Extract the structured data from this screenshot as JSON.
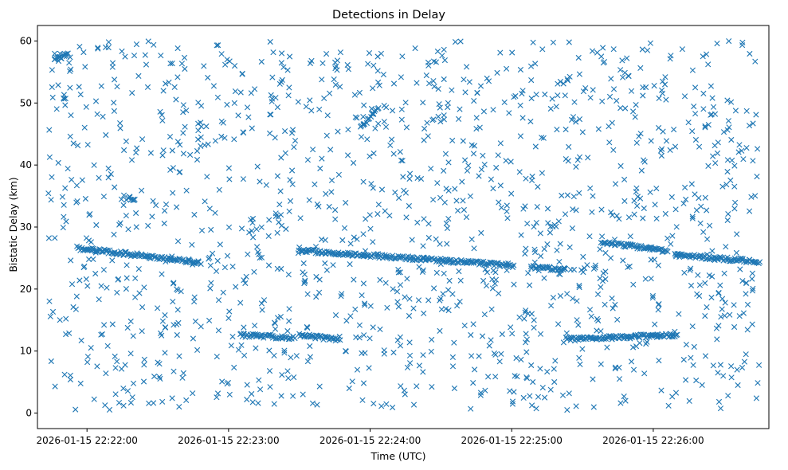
{
  "chart_data": {
    "type": "scatter",
    "title": "Detections in Delay",
    "xlabel": "Time (UTC)",
    "ylabel": "Bistatic Delay (km)",
    "x_axis": "datetime",
    "xlim": [
      "2026-01-15 22:21:39",
      "2026-01-15 22:26:49"
    ],
    "ylim": [
      -2.5,
      62.5
    ],
    "x_ticks": [
      "2026-01-15 22:22:00",
      "2026-01-15 22:23:00",
      "2026-01-15 22:24:00",
      "2026-01-15 22:25:00",
      "2026-01-15 22:26:00"
    ],
    "y_ticks": [
      0,
      10,
      20,
      30,
      40,
      50,
      60
    ],
    "grid": false,
    "legend": "none",
    "marker": "x",
    "marker_color": "#1f77b4",
    "series": [
      {
        "tracks": [
          {
            "start": [
              "2026-01-15 22:21:56",
              26.6
            ],
            "end": [
              "2026-01-15 22:22:48",
              24.3
            ]
          },
          {
            "start": [
              "2026-01-15 22:23:30",
              26.2
            ],
            "end": [
              "2026-01-15 22:25:01",
              23.8
            ]
          },
          {
            "start": [
              "2026-01-15 22:25:08",
              23.6
            ],
            "end": [
              "2026-01-15 22:25:23",
              23.1
            ]
          },
          {
            "start": [
              "2026-01-15 22:25:38",
              27.6
            ],
            "end": [
              "2026-01-15 22:26:06",
              26.1
            ]
          },
          {
            "start": [
              "2026-01-15 22:26:09",
              25.5
            ],
            "end": [
              "2026-01-15 22:26:45",
              24.4
            ]
          },
          {
            "start": [
              "2026-01-15 22:23:05",
              12.6
            ],
            "end": [
              "2026-01-15 22:23:28",
              12.1
            ]
          },
          {
            "start": [
              "2026-01-15 22:23:30",
              12.6
            ],
            "end": [
              "2026-01-15 22:23:47",
              11.8
            ]
          },
          {
            "start": [
              "2026-01-15 22:25:23",
              11.9
            ],
            "end": [
              "2026-01-15 22:26:10",
              12.6
            ]
          },
          {
            "start": [
              "2026-01-15 22:21:46",
              57.0
            ],
            "end": [
              "2026-01-15 22:21:52",
              57.8
            ]
          },
          {
            "start": [
              "2026-01-15 22:22:17",
              34.6
            ],
            "end": [
              "2026-01-15 22:22:20",
              34.6
            ]
          },
          {
            "start": [
              "2026-01-15 22:23:56",
              46.0
            ],
            "end": [
              "2026-01-15 22:24:03",
              49.0
            ]
          }
        ],
        "scatter_extent": {
          "x": [
            "2026-01-15 22:21:43",
            "2026-01-15 22:26:45"
          ],
          "y": [
            0.5,
            60
          ]
        },
        "scatter_count": 1400
      }
    ]
  }
}
